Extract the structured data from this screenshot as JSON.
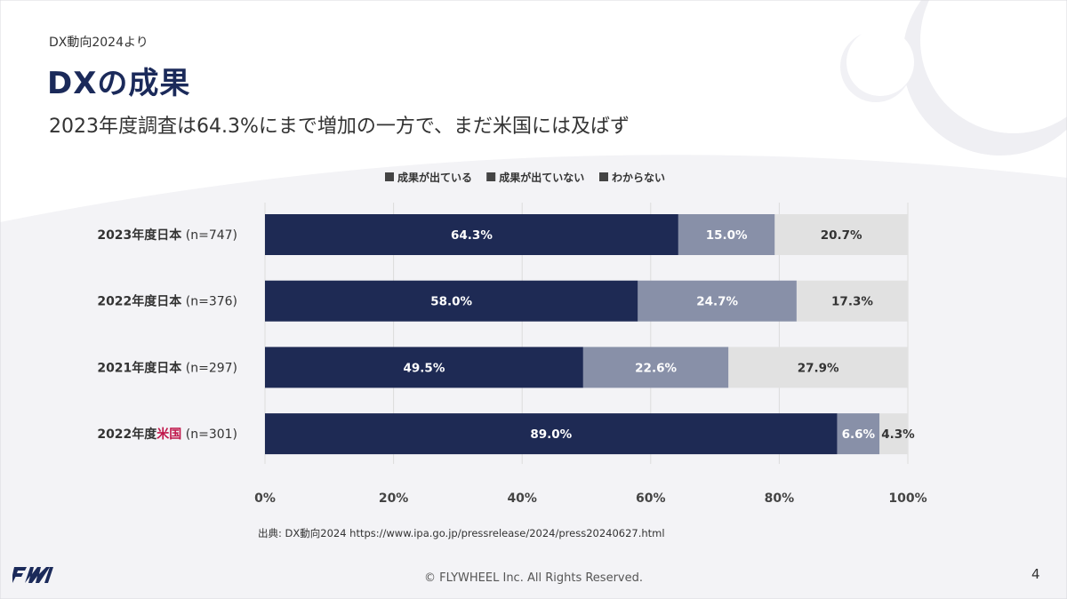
{
  "header": {
    "eyebrow": "DX動向2024より",
    "title": "DXの成果",
    "subtitle": "2023年度調査は64.3%にまで増加の一方で、まだ米国には及ばず"
  },
  "chart_data": {
    "type": "bar",
    "orientation": "horizontal",
    "stacked": true,
    "xlim": [
      0,
      100
    ],
    "x_ticks": [
      "0%",
      "20%",
      "40%",
      "60%",
      "80%",
      "100%"
    ],
    "grid": true,
    "legend_position": "top",
    "categories": [
      {
        "prefix": "2023年度日本",
        "highlight": "",
        "suffix": " (n=747)"
      },
      {
        "prefix": "2022年度日本",
        "highlight": "",
        "suffix": " (n=376)"
      },
      {
        "prefix": "2021年度日本",
        "highlight": "",
        "suffix": " (n=297)"
      },
      {
        "prefix": "2022年度",
        "highlight": "米国",
        "suffix": " (n=301)"
      }
    ],
    "series": [
      {
        "name": "成果が出ている",
        "color": "#1e2a54",
        "label_color": "#ffffff",
        "values": [
          64.3,
          58.0,
          49.5,
          89.0
        ],
        "labels": [
          "64.3%",
          "58.0%",
          "49.5%",
          "89.0%"
        ]
      },
      {
        "name": "成果が出ていない",
        "color": "#8890a8",
        "label_color": "#ffffff",
        "values": [
          15.0,
          24.7,
          22.6,
          6.6
        ],
        "labels": [
          "15.0%",
          "24.7%",
          "22.6%",
          "6.6%"
        ]
      },
      {
        "name": "わからない",
        "color": "#e1e1e1",
        "label_color": "#333333",
        "values": [
          20.7,
          17.3,
          27.9,
          4.3
        ],
        "labels": [
          "20.7%",
          "17.3%",
          "27.9%",
          "4.3%"
        ]
      }
    ],
    "highlight_color": "#c0164a"
  },
  "source": "出典: DX動向2024  https://www.ipa.go.jp/pressrelease/2024/press20240627.html",
  "footer": {
    "copyright": "© FLYWHEEL Inc. All Rights Reserved.",
    "page_number": "4",
    "logo_icon": "flywheel-logo-icon",
    "brand_color": "#1b2a5a"
  }
}
